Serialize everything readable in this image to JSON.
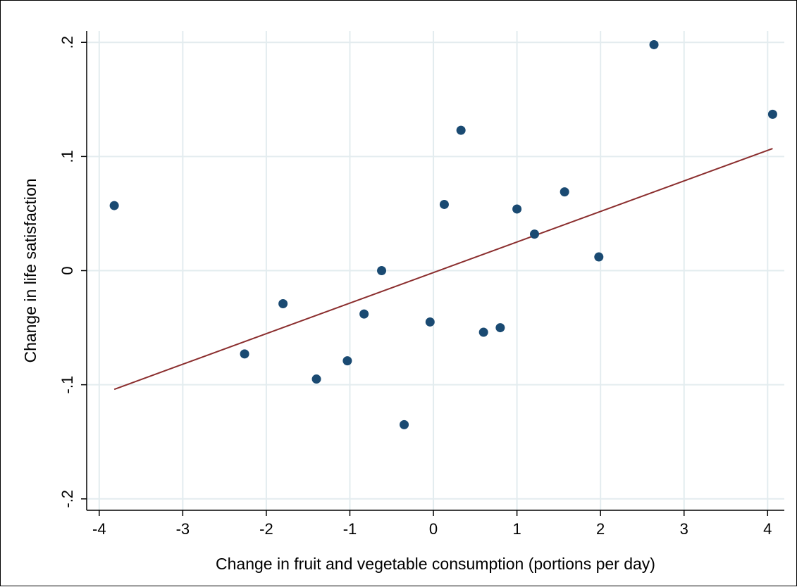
{
  "chart_data": {
    "type": "scatter",
    "title": "",
    "xlabel": "Change in fruit and vegetable consumption (portions per day)",
    "ylabel": "Change in life satisfaction",
    "xlim": [
      -4.15,
      4.2
    ],
    "ylim": [
      -0.21,
      0.21
    ],
    "x_ticks": [
      -4,
      -3,
      -2,
      -1,
      0,
      1,
      2,
      3,
      4
    ],
    "x_tick_labels": [
      "-4",
      "-3",
      "-2",
      "-1",
      "0",
      "1",
      "2",
      "3",
      "4"
    ],
    "y_ticks": [
      -0.2,
      -0.1,
      0,
      0.1,
      0.2
    ],
    "y_tick_labels": [
      "-.2",
      "-.1",
      "0",
      ".1",
      ".2"
    ],
    "grid": true,
    "legend": "none",
    "colors": {
      "points": "#1a4a72",
      "fit_line": "#8b2e2e",
      "grid": "#e3ecef",
      "axis": "#000000"
    },
    "series": [
      {
        "type": "scatter",
        "points": [
          {
            "x": -3.82,
            "y": 0.057
          },
          {
            "x": -2.26,
            "y": -0.073
          },
          {
            "x": -1.8,
            "y": -0.029
          },
          {
            "x": -1.4,
            "y": -0.095
          },
          {
            "x": -1.03,
            "y": -0.079
          },
          {
            "x": -0.83,
            "y": -0.038
          },
          {
            "x": -0.62,
            "y": 0.0
          },
          {
            "x": -0.35,
            "y": -0.135
          },
          {
            "x": -0.04,
            "y": -0.045
          },
          {
            "x": 0.13,
            "y": 0.058
          },
          {
            "x": 0.33,
            "y": 0.123
          },
          {
            "x": 0.6,
            "y": -0.054
          },
          {
            "x": 0.8,
            "y": -0.05
          },
          {
            "x": 1.0,
            "y": 0.054
          },
          {
            "x": 1.21,
            "y": 0.032
          },
          {
            "x": 1.57,
            "y": 0.069
          },
          {
            "x": 1.98,
            "y": 0.012
          },
          {
            "x": 2.64,
            "y": 0.198
          },
          {
            "x": 4.06,
            "y": 0.137
          }
        ]
      },
      {
        "type": "line",
        "points": [
          {
            "x": -3.82,
            "y": -0.104
          },
          {
            "x": 4.06,
            "y": 0.107
          }
        ]
      }
    ]
  }
}
